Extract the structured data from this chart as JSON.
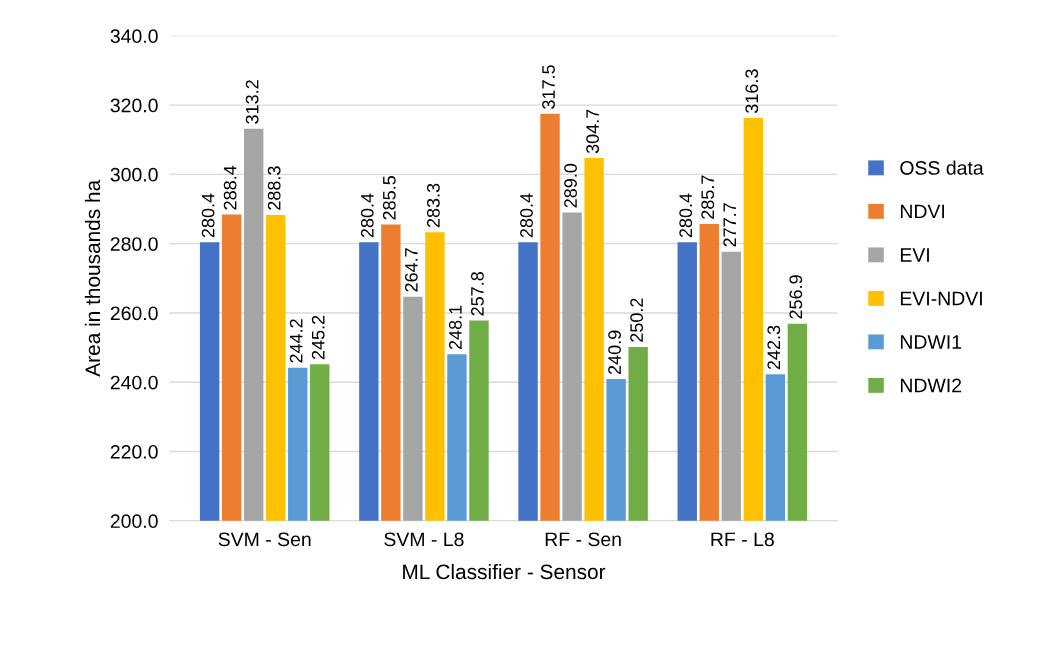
{
  "chart_data": {
    "type": "bar",
    "xlabel": "ML Classifier - Sensor",
    "ylabel": "Area in thousands ha",
    "categories": [
      "SVM - Sen",
      "SVM - L8",
      "RF - Sen",
      "RF - L8"
    ],
    "series": [
      {
        "name": "OSS data",
        "color": "#4472c4",
        "values": [
          280.4,
          280.4,
          280.4,
          280.4
        ]
      },
      {
        "name": "NDVI",
        "color": "#ed7d31",
        "values": [
          288.4,
          285.5,
          317.5,
          285.7
        ]
      },
      {
        "name": "EVI",
        "color": "#a5a5a5",
        "values": [
          313.2,
          264.7,
          289.0,
          277.7
        ]
      },
      {
        "name": "EVI-NDVI",
        "color": "#ffc000",
        "values": [
          288.3,
          283.3,
          304.7,
          316.3
        ]
      },
      {
        "name": "NDWI1",
        "color": "#5b9bd5",
        "values": [
          244.2,
          248.1,
          240.9,
          242.3
        ]
      },
      {
        "name": "NDWI2",
        "color": "#70ad47",
        "values": [
          245.2,
          257.8,
          250.2,
          256.9
        ]
      }
    ],
    "value_labels": [
      [
        "280.4",
        "280.4",
        "280.4",
        "280.4"
      ],
      [
        "288.4",
        "285.5",
        "317.5",
        "285.7"
      ],
      [
        "313.2",
        "264.7",
        "289.0",
        "277.7"
      ],
      [
        "288.3",
        "283.3",
        "304.7",
        "316.3"
      ],
      [
        "244.2",
        "248.1",
        "240.9",
        "242.3"
      ],
      [
        "245.2",
        "257.8",
        "250.2",
        "256.9"
      ]
    ],
    "ylim": [
      200,
      340
    ],
    "yticks": [
      {
        "value": 200,
        "label": "200.0"
      },
      {
        "value": 220,
        "label": "220.0"
      },
      {
        "value": 240,
        "label": "240.0"
      },
      {
        "value": 260,
        "label": "260.0"
      },
      {
        "value": 280,
        "label": "280.0"
      },
      {
        "value": 300,
        "label": "300.0"
      },
      {
        "value": 320,
        "label": "320.0"
      },
      {
        "value": 340,
        "label": "340.0"
      }
    ],
    "grid": "y",
    "legend": "right"
  }
}
